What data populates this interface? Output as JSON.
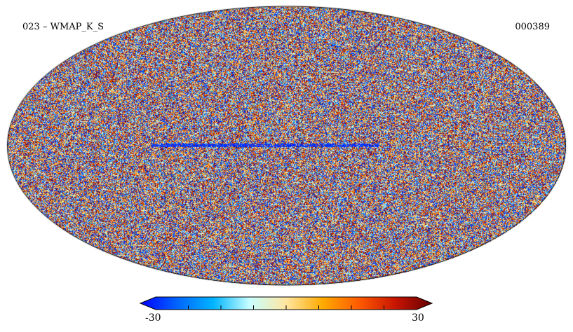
{
  "header": {
    "title": "023 – WMAP_K_S",
    "map_id": "000389"
  },
  "map": {
    "projection": "mollweide",
    "outline_color": "#000000",
    "background_color": "#ffffff"
  },
  "colorbar": {
    "min_label": "-30",
    "max_label": "30",
    "min_value": -30,
    "max_value": 30,
    "tick_count": 9,
    "colors": [
      "#0000ff",
      "#0064ff",
      "#00b4ff",
      "#c8ffff",
      "#ffe6a0",
      "#ffaa00",
      "#ff5a00",
      "#c81400",
      "#640000"
    ]
  }
}
